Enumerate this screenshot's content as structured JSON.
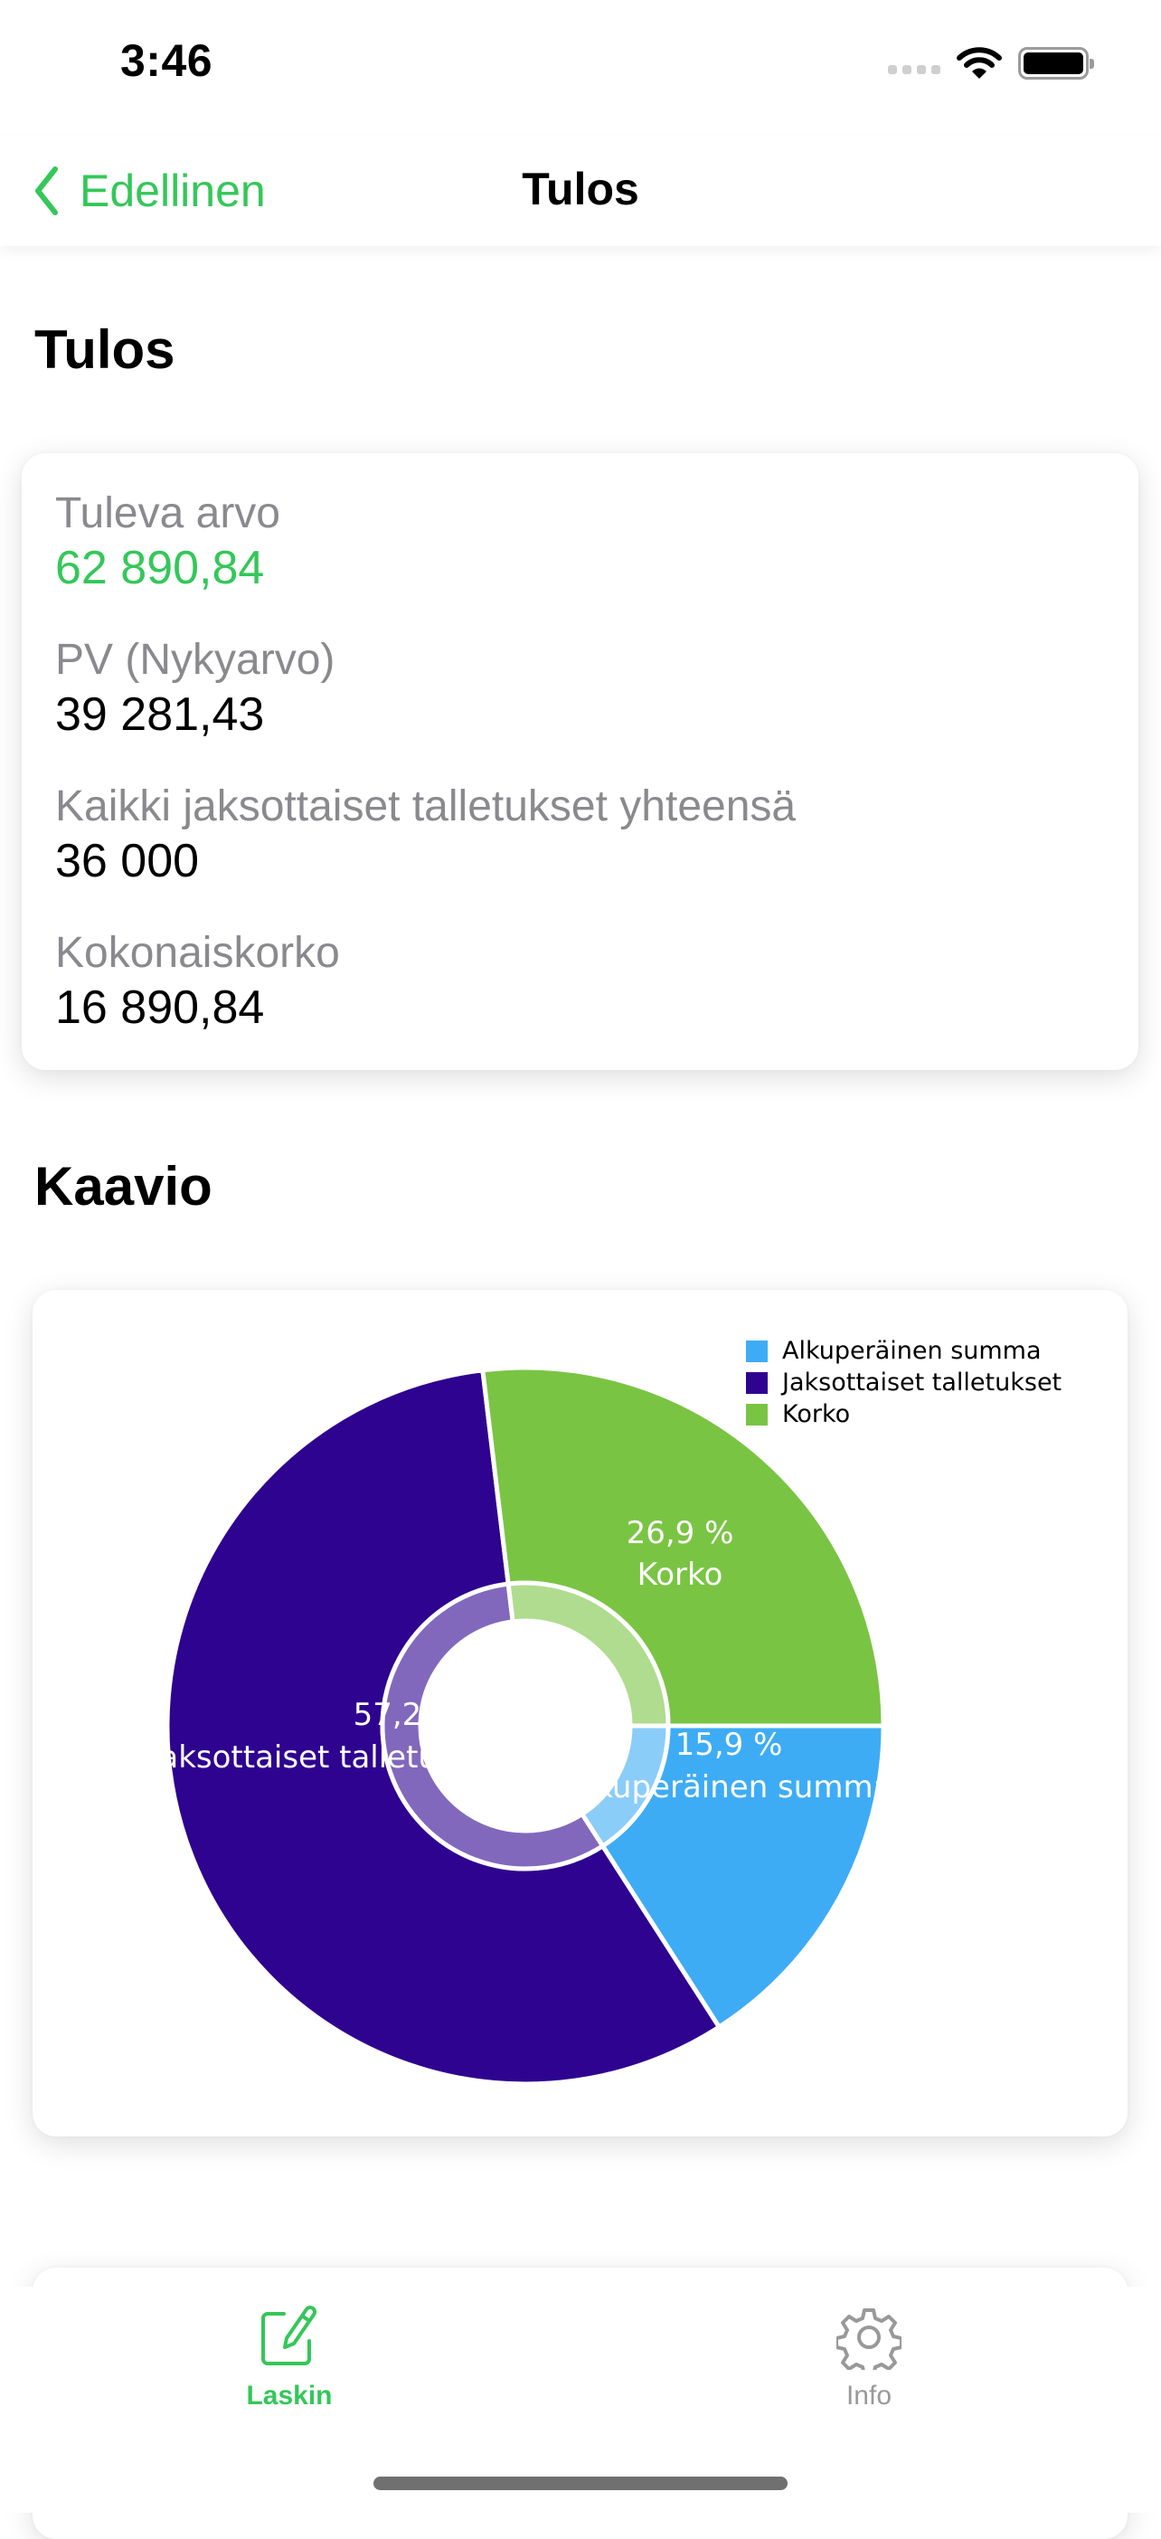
{
  "status_bar": {
    "time": "3:46"
  },
  "nav": {
    "back_label": "Edellinen",
    "title": "Tulos"
  },
  "results": {
    "heading": "Tulos",
    "items": [
      {
        "label": "Tuleva arvo",
        "value": "62 890,84",
        "accent": true
      },
      {
        "label": "PV (Nykyarvo)",
        "value": "39 281,43",
        "accent": false
      },
      {
        "label": "Kaikki jaksottaiset talletukset yhteensä",
        "value": "36 000",
        "accent": false
      },
      {
        "label": "Kokonaiskorko",
        "value": "16 890,84",
        "accent": false
      }
    ]
  },
  "chart_section": {
    "heading": "Kaavio"
  },
  "chart_data": {
    "type": "pie",
    "title": "Kaavio",
    "categories": [
      "Alkuperäinen summa",
      "Jaksottaiset talletukset",
      "Korko"
    ],
    "values": [
      15.9,
      57.2,
      26.9
    ],
    "unit": "%",
    "value_labels": [
      "15,9 %",
      "57,2 %",
      "26,9 %"
    ],
    "colors": [
      "#3eacf5",
      "#2e038f",
      "#7ac444"
    ],
    "legend_position": "top-right",
    "donut": true
  },
  "legend": [
    {
      "label": "Alkuperäinen summa",
      "color": "#3eacf5"
    },
    {
      "label": "Jaksottaiset talletukset",
      "color": "#2e038f"
    },
    {
      "label": "Korko",
      "color": "#7ac444"
    }
  ],
  "slice_labels": [
    {
      "pct": "15,9 %",
      "name": "Alkuperäinen summa"
    },
    {
      "pct": "57,2 %",
      "name": "Jaksottaiset talletukset"
    },
    {
      "pct": "26,9 %",
      "name": "Korko"
    }
  ],
  "tabbar": {
    "tabs": [
      {
        "label": "Laskin",
        "icon": "pencil-square-icon",
        "active": true
      },
      {
        "label": "Info",
        "icon": "gear-icon",
        "active": false
      }
    ]
  },
  "colors": {
    "accent": "#34c759",
    "secondary_text": "#8a8a8e",
    "inactive_tab": "#999999"
  }
}
